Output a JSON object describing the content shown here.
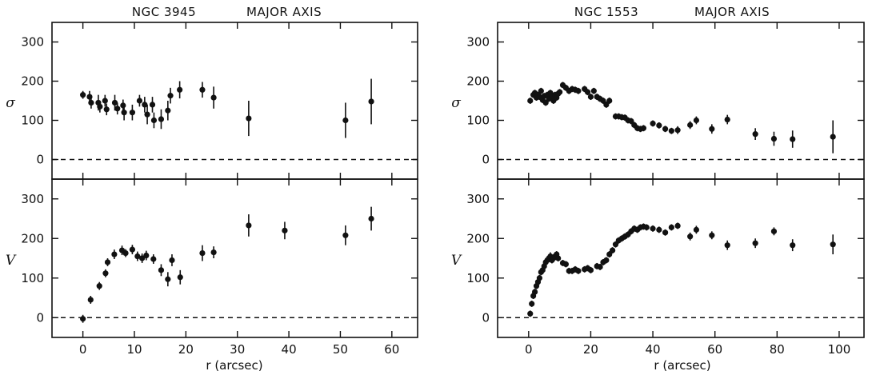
{
  "chart_data": [
    {
      "type": "scatter",
      "title": "NGC 3945",
      "subtitle": "MAJOR AXIS",
      "xlabel": "r (arcsec)",
      "xlim": [
        -6,
        65
      ],
      "xticks": [
        0,
        10,
        20,
        30,
        40,
        50,
        60
      ],
      "panels": [
        {
          "ylabel": "σ",
          "ylim": [
            -50,
            350
          ],
          "yticks": [
            0,
            100,
            200,
            300
          ],
          "reference_line": 0,
          "points": [
            {
              "x": 0,
              "y": 165,
              "err": 10
            },
            {
              "x": 1.3,
              "y": 160,
              "err": 15
            },
            {
              "x": 1.6,
              "y": 145,
              "err": 15
            },
            {
              "x": 3,
              "y": 145,
              "err": 20
            },
            {
              "x": 3.3,
              "y": 135,
              "err": 15
            },
            {
              "x": 4.3,
              "y": 150,
              "err": 15
            },
            {
              "x": 4.6,
              "y": 128,
              "err": 15
            },
            {
              "x": 6.2,
              "y": 145,
              "err": 20
            },
            {
              "x": 6.7,
              "y": 130,
              "err": 15
            },
            {
              "x": 7.8,
              "y": 138,
              "err": 15
            },
            {
              "x": 8,
              "y": 120,
              "err": 20
            },
            {
              "x": 9.6,
              "y": 120,
              "err": 20
            },
            {
              "x": 11,
              "y": 150,
              "err": 15
            },
            {
              "x": 12,
              "y": 140,
              "err": 20
            },
            {
              "x": 12.5,
              "y": 115,
              "err": 25
            },
            {
              "x": 13.5,
              "y": 140,
              "err": 20
            },
            {
              "x": 13.8,
              "y": 100,
              "err": 20
            },
            {
              "x": 15.2,
              "y": 103,
              "err": 25
            },
            {
              "x": 16.5,
              "y": 125,
              "err": 25
            },
            {
              "x": 17,
              "y": 163,
              "err": 20
            },
            {
              "x": 18.8,
              "y": 178,
              "err": 22
            },
            {
              "x": 23.2,
              "y": 178,
              "err": 20
            },
            {
              "x": 25.4,
              "y": 158,
              "err": 28
            },
            {
              "x": 32.2,
              "y": 105,
              "err": 45
            },
            {
              "x": 51,
              "y": 100,
              "err": 45
            },
            {
              "x": 56,
              "y": 148,
              "err": 58
            }
          ]
        },
        {
          "ylabel": "V",
          "ylim": [
            -50,
            350
          ],
          "yticks": [
            0,
            100,
            200,
            300
          ],
          "reference_line": 0,
          "points": [
            {
              "x": 0,
              "y": -3,
              "err": 10
            },
            {
              "x": 1.5,
              "y": 45,
              "err": 10
            },
            {
              "x": 3.2,
              "y": 80,
              "err": 10
            },
            {
              "x": 4.4,
              "y": 112,
              "err": 10
            },
            {
              "x": 4.8,
              "y": 140,
              "err": 10
            },
            {
              "x": 6.1,
              "y": 160,
              "err": 12
            },
            {
              "x": 7.6,
              "y": 170,
              "err": 12
            },
            {
              "x": 8.3,
              "y": 163,
              "err": 10
            },
            {
              "x": 9.6,
              "y": 172,
              "err": 12
            },
            {
              "x": 10.6,
              "y": 155,
              "err": 12
            },
            {
              "x": 11.5,
              "y": 150,
              "err": 12
            },
            {
              "x": 12.3,
              "y": 157,
              "err": 12
            },
            {
              "x": 13.7,
              "y": 148,
              "err": 12
            },
            {
              "x": 15.2,
              "y": 120,
              "err": 15
            },
            {
              "x": 16.5,
              "y": 97,
              "err": 18
            },
            {
              "x": 17.3,
              "y": 145,
              "err": 15
            },
            {
              "x": 18.9,
              "y": 102,
              "err": 18
            },
            {
              "x": 23.2,
              "y": 163,
              "err": 20
            },
            {
              "x": 25.4,
              "y": 165,
              "err": 15
            },
            {
              "x": 32.2,
              "y": 233,
              "err": 28
            },
            {
              "x": 39.2,
              "y": 220,
              "err": 22
            },
            {
              "x": 51,
              "y": 208,
              "err": 25
            },
            {
              "x": 56,
              "y": 250,
              "err": 30
            }
          ]
        }
      ]
    },
    {
      "type": "scatter",
      "title": "NGC 1553",
      "subtitle": "MAJOR AXIS",
      "xlabel": "r (arcsec)",
      "xlim": [
        -10,
        108
      ],
      "xticks": [
        0,
        20,
        40,
        60,
        80,
        100
      ],
      "panels": [
        {
          "ylabel": "σ",
          "ylim": [
            -50,
            350
          ],
          "yticks": [
            0,
            100,
            200,
            300
          ],
          "reference_line": 0,
          "points": [
            {
              "x": 0.5,
              "y": 150,
              "err": 8
            },
            {
              "x": 1.5,
              "y": 165,
              "err": 8
            },
            {
              "x": 2,
              "y": 170,
              "err": 8
            },
            {
              "x": 2.5,
              "y": 158,
              "err": 8
            },
            {
              "x": 3,
              "y": 165,
              "err": 8
            },
            {
              "x": 3.5,
              "y": 160,
              "err": 8
            },
            {
              "x": 4,
              "y": 175,
              "err": 8
            },
            {
              "x": 4.5,
              "y": 152,
              "err": 8
            },
            {
              "x": 5,
              "y": 162,
              "err": 8
            },
            {
              "x": 5.5,
              "y": 145,
              "err": 8
            },
            {
              "x": 6,
              "y": 165,
              "err": 8
            },
            {
              "x": 6.5,
              "y": 155,
              "err": 8
            },
            {
              "x": 7,
              "y": 170,
              "err": 8
            },
            {
              "x": 7.5,
              "y": 160,
              "err": 8
            },
            {
              "x": 8,
              "y": 150,
              "err": 8
            },
            {
              "x": 8.5,
              "y": 165,
              "err": 8
            },
            {
              "x": 9,
              "y": 158,
              "err": 8
            },
            {
              "x": 9.5,
              "y": 168,
              "err": 8
            },
            {
              "x": 10,
              "y": 172,
              "err": 8
            },
            {
              "x": 11,
              "y": 190,
              "err": 8
            },
            {
              "x": 12,
              "y": 183,
              "err": 8
            },
            {
              "x": 13,
              "y": 175,
              "err": 8
            },
            {
              "x": 14,
              "y": 180,
              "err": 8
            },
            {
              "x": 15,
              "y": 178,
              "err": 8
            },
            {
              "x": 16,
              "y": 175,
              "err": 8
            },
            {
              "x": 18,
              "y": 180,
              "err": 8
            },
            {
              "x": 19,
              "y": 172,
              "err": 8
            },
            {
              "x": 20,
              "y": 160,
              "err": 8
            },
            {
              "x": 21,
              "y": 175,
              "err": 8
            },
            {
              "x": 22,
              "y": 160,
              "err": 8
            },
            {
              "x": 23,
              "y": 155,
              "err": 8
            },
            {
              "x": 24,
              "y": 150,
              "err": 8
            },
            {
              "x": 25,
              "y": 140,
              "err": 8
            },
            {
              "x": 26,
              "y": 150,
              "err": 8
            },
            {
              "x": 28,
              "y": 110,
              "err": 8
            },
            {
              "x": 29,
              "y": 110,
              "err": 8
            },
            {
              "x": 30,
              "y": 108,
              "err": 8
            },
            {
              "x": 31,
              "y": 107,
              "err": 8
            },
            {
              "x": 32,
              "y": 100,
              "err": 8
            },
            {
              "x": 33,
              "y": 98,
              "err": 8
            },
            {
              "x": 34,
              "y": 88,
              "err": 8
            },
            {
              "x": 35,
              "y": 80,
              "err": 8
            },
            {
              "x": 36,
              "y": 78,
              "err": 8
            },
            {
              "x": 37,
              "y": 80,
              "err": 8
            },
            {
              "x": 40,
              "y": 92,
              "err": 8
            },
            {
              "x": 42,
              "y": 87,
              "err": 8
            },
            {
              "x": 44,
              "y": 78,
              "err": 8
            },
            {
              "x": 46,
              "y": 73,
              "err": 8
            },
            {
              "x": 48,
              "y": 75,
              "err": 10
            },
            {
              "x": 52,
              "y": 88,
              "err": 10
            },
            {
              "x": 54,
              "y": 100,
              "err": 10
            },
            {
              "x": 59,
              "y": 78,
              "err": 12
            },
            {
              "x": 64,
              "y": 102,
              "err": 12
            },
            {
              "x": 73,
              "y": 65,
              "err": 15
            },
            {
              "x": 79,
              "y": 53,
              "err": 18
            },
            {
              "x": 85,
              "y": 52,
              "err": 22
            },
            {
              "x": 98,
              "y": 58,
              "err": 42
            }
          ]
        },
        {
          "ylabel": "V",
          "ylim": [
            -50,
            350
          ],
          "yticks": [
            0,
            100,
            200,
            300
          ],
          "reference_line": 0,
          "points": [
            {
              "x": 0.5,
              "y": 10,
              "err": 8
            },
            {
              "x": 1,
              "y": 35,
              "err": 8
            },
            {
              "x": 1.5,
              "y": 55,
              "err": 8
            },
            {
              "x": 2,
              "y": 65,
              "err": 8
            },
            {
              "x": 2.5,
              "y": 80,
              "err": 8
            },
            {
              "x": 3,
              "y": 90,
              "err": 8
            },
            {
              "x": 3.5,
              "y": 100,
              "err": 8
            },
            {
              "x": 4,
              "y": 115,
              "err": 8
            },
            {
              "x": 4.5,
              "y": 120,
              "err": 8
            },
            {
              "x": 5,
              "y": 130,
              "err": 8
            },
            {
              "x": 5.5,
              "y": 140,
              "err": 8
            },
            {
              "x": 6,
              "y": 145,
              "err": 8
            },
            {
              "x": 6.5,
              "y": 150,
              "err": 8
            },
            {
              "x": 7,
              "y": 155,
              "err": 10
            },
            {
              "x": 7.5,
              "y": 145,
              "err": 8
            },
            {
              "x": 8,
              "y": 150,
              "err": 8
            },
            {
              "x": 8.5,
              "y": 155,
              "err": 8
            },
            {
              "x": 9,
              "y": 160,
              "err": 8
            },
            {
              "x": 9.5,
              "y": 150,
              "err": 8
            },
            {
              "x": 11,
              "y": 138,
              "err": 8
            },
            {
              "x": 12,
              "y": 135,
              "err": 8
            },
            {
              "x": 13,
              "y": 118,
              "err": 8
            },
            {
              "x": 14,
              "y": 118,
              "err": 8
            },
            {
              "x": 15,
              "y": 122,
              "err": 8
            },
            {
              "x": 16,
              "y": 118,
              "err": 8
            },
            {
              "x": 18,
              "y": 122,
              "err": 8
            },
            {
              "x": 19,
              "y": 125,
              "err": 8
            },
            {
              "x": 20,
              "y": 120,
              "err": 8
            },
            {
              "x": 22,
              "y": 130,
              "err": 8
            },
            {
              "x": 23,
              "y": 128,
              "err": 8
            },
            {
              "x": 24,
              "y": 140,
              "err": 8
            },
            {
              "x": 25,
              "y": 145,
              "err": 8
            },
            {
              "x": 26,
              "y": 160,
              "err": 8
            },
            {
              "x": 27,
              "y": 170,
              "err": 8
            },
            {
              "x": 28,
              "y": 185,
              "err": 8
            },
            {
              "x": 29,
              "y": 195,
              "err": 8
            },
            {
              "x": 30,
              "y": 200,
              "err": 8
            },
            {
              "x": 31,
              "y": 205,
              "err": 8
            },
            {
              "x": 32,
              "y": 210,
              "err": 8
            },
            {
              "x": 33,
              "y": 218,
              "err": 8
            },
            {
              "x": 34,
              "y": 225,
              "err": 8
            },
            {
              "x": 35,
              "y": 222,
              "err": 8
            },
            {
              "x": 36,
              "y": 228,
              "err": 8
            },
            {
              "x": 37,
              "y": 230,
              "err": 8
            },
            {
              "x": 38,
              "y": 228,
              "err": 8
            },
            {
              "x": 40,
              "y": 225,
              "err": 8
            },
            {
              "x": 42,
              "y": 222,
              "err": 8
            },
            {
              "x": 44,
              "y": 215,
              "err": 8
            },
            {
              "x": 46,
              "y": 228,
              "err": 8
            },
            {
              "x": 48,
              "y": 232,
              "err": 8
            },
            {
              "x": 52,
              "y": 205,
              "err": 10
            },
            {
              "x": 54,
              "y": 222,
              "err": 10
            },
            {
              "x": 59,
              "y": 208,
              "err": 10
            },
            {
              "x": 64,
              "y": 183,
              "err": 12
            },
            {
              "x": 73,
              "y": 188,
              "err": 12
            },
            {
              "x": 79,
              "y": 218,
              "err": 10
            },
            {
              "x": 85,
              "y": 183,
              "err": 15
            },
            {
              "x": 98,
              "y": 185,
              "err": 25
            }
          ]
        }
      ]
    }
  ]
}
